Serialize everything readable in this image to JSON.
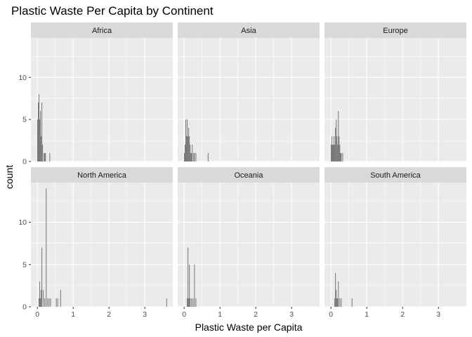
{
  "chart_data": {
    "type": "bar",
    "subtype": "faceted-histogram",
    "title": "Plastic Waste Per Capita by Continent",
    "xlabel": "Plastic Waste per Capita",
    "ylabel": "count",
    "xlim": [
      -0.18,
      3.78
    ],
    "ylim": [
      0,
      14.7
    ],
    "x_ticks": [
      0,
      1,
      2,
      3
    ],
    "y_ticks": [
      0,
      5,
      10
    ],
    "bin_width": 0.02,
    "grid": true,
    "legend": "none",
    "colors": {
      "bar": "#595959",
      "panel_background": "#ebebeb",
      "strip_background": "#d9d9d9",
      "grid": "#ffffff"
    },
    "facets": [
      {
        "name": "Africa",
        "bins": [
          {
            "x": 0.01,
            "count": 5
          },
          {
            "x": 0.03,
            "count": 7
          },
          {
            "x": 0.05,
            "count": 8
          },
          {
            "x": 0.07,
            "count": 5
          },
          {
            "x": 0.09,
            "count": 6
          },
          {
            "x": 0.11,
            "count": 3
          },
          {
            "x": 0.13,
            "count": 7
          },
          {
            "x": 0.15,
            "count": 2
          },
          {
            "x": 0.19,
            "count": 1
          },
          {
            "x": 0.21,
            "count": 1
          },
          {
            "x": 0.23,
            "count": 1
          },
          {
            "x": 0.35,
            "count": 1
          }
        ]
      },
      {
        "name": "Asia",
        "bins": [
          {
            "x": 0.01,
            "count": 1
          },
          {
            "x": 0.03,
            "count": 2
          },
          {
            "x": 0.05,
            "count": 5
          },
          {
            "x": 0.07,
            "count": 3
          },
          {
            "x": 0.09,
            "count": 5
          },
          {
            "x": 0.11,
            "count": 3
          },
          {
            "x": 0.13,
            "count": 4
          },
          {
            "x": 0.15,
            "count": 3
          },
          {
            "x": 0.17,
            "count": 2
          },
          {
            "x": 0.19,
            "count": 1
          },
          {
            "x": 0.21,
            "count": 1
          },
          {
            "x": 0.23,
            "count": 2
          },
          {
            "x": 0.27,
            "count": 1
          },
          {
            "x": 0.29,
            "count": 1
          },
          {
            "x": 0.33,
            "count": 1
          },
          {
            "x": 0.67,
            "count": 1
          }
        ]
      },
      {
        "name": "Europe",
        "bins": [
          {
            "x": 0.01,
            "count": 2
          },
          {
            "x": 0.03,
            "count": 3
          },
          {
            "x": 0.05,
            "count": 2
          },
          {
            "x": 0.07,
            "count": 2
          },
          {
            "x": 0.09,
            "count": 3
          },
          {
            "x": 0.11,
            "count": 2
          },
          {
            "x": 0.13,
            "count": 4
          },
          {
            "x": 0.15,
            "count": 5
          },
          {
            "x": 0.17,
            "count": 3
          },
          {
            "x": 0.19,
            "count": 2
          },
          {
            "x": 0.21,
            "count": 6
          },
          {
            "x": 0.23,
            "count": 3
          },
          {
            "x": 0.25,
            "count": 2
          },
          {
            "x": 0.27,
            "count": 1
          },
          {
            "x": 0.29,
            "count": 1
          },
          {
            "x": 0.33,
            "count": 1
          }
        ]
      },
      {
        "name": "North America",
        "bins": [
          {
            "x": 0.05,
            "count": 1
          },
          {
            "x": 0.07,
            "count": 3
          },
          {
            "x": 0.09,
            "count": 1
          },
          {
            "x": 0.11,
            "count": 2
          },
          {
            "x": 0.13,
            "count": 7
          },
          {
            "x": 0.17,
            "count": 2
          },
          {
            "x": 0.21,
            "count": 1
          },
          {
            "x": 0.25,
            "count": 14
          },
          {
            "x": 0.29,
            "count": 1
          },
          {
            "x": 0.33,
            "count": 1
          },
          {
            "x": 0.37,
            "count": 1
          },
          {
            "x": 0.53,
            "count": 1
          },
          {
            "x": 0.57,
            "count": 1
          },
          {
            "x": 0.65,
            "count": 2
          },
          {
            "x": 3.61,
            "count": 1
          }
        ]
      },
      {
        "name": "Oceania",
        "bins": [
          {
            "x": 0.09,
            "count": 1
          },
          {
            "x": 0.11,
            "count": 7
          },
          {
            "x": 0.13,
            "count": 1
          },
          {
            "x": 0.15,
            "count": 5
          },
          {
            "x": 0.17,
            "count": 1
          },
          {
            "x": 0.21,
            "count": 1
          },
          {
            "x": 0.25,
            "count": 1
          },
          {
            "x": 0.29,
            "count": 5
          },
          {
            "x": 0.33,
            "count": 1
          }
        ]
      },
      {
        "name": "South America",
        "bins": [
          {
            "x": 0.11,
            "count": 1
          },
          {
            "x": 0.13,
            "count": 4
          },
          {
            "x": 0.15,
            "count": 2
          },
          {
            "x": 0.17,
            "count": 1
          },
          {
            "x": 0.19,
            "count": 1
          },
          {
            "x": 0.21,
            "count": 3
          },
          {
            "x": 0.25,
            "count": 1
          },
          {
            "x": 0.29,
            "count": 1
          },
          {
            "x": 0.59,
            "count": 1
          }
        ]
      }
    ]
  }
}
